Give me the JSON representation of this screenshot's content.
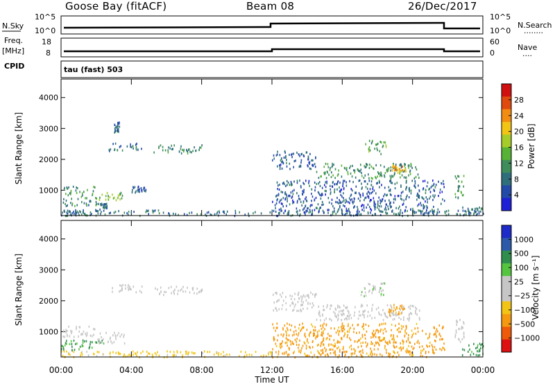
{
  "header": {
    "station": "Goose Bay (fitACF)",
    "beam": "Beam 08",
    "date": "26/Dec/2017"
  },
  "colors": {
    "axis": "#000000",
    "power_scale": [
      "#1f1fd6",
      "#244aa8",
      "#2f6f7c",
      "#3f8d5a",
      "#57b236",
      "#a6cc2a",
      "#f2c416",
      "#f28c12",
      "#e04a0e",
      "#d01010"
    ],
    "velocity_scale": [
      "#dd1111",
      "#ee5a0a",
      "#f59a10",
      "#f2c415",
      "#c6c6c6",
      "#c6c6c6",
      "#55c540",
      "#2f8e4d",
      "#2c5aa8",
      "#1d2bc8"
    ]
  },
  "info_panels": {
    "row1": {
      "left_label": "N.Sky",
      "left_ticks": [
        "10^5",
        "10^0"
      ],
      "right_ticks": [
        "10^5",
        "10^0"
      ],
      "right_label": "N.Search",
      "right_dots": "........"
    },
    "row2": {
      "left_label_1": "Freq.",
      "left_label_2": "[MHz]",
      "left_ticks": [
        "18",
        "8"
      ],
      "right_ticks": [
        "60",
        "0"
      ],
      "right_label": "Nave",
      "right_dots": "...."
    },
    "row3": {
      "left_label": "CPID",
      "text": "tau (fast) 503"
    }
  },
  "chart_data": [
    {
      "type": "heatmap",
      "title": "",
      "quantity": "Power",
      "ylabel": "Slant Range [km]",
      "xlabel": "",
      "x_ticks": [
        "00:00",
        "04:00",
        "08:00",
        "12:00",
        "16:00",
        "20:00",
        "00:00"
      ],
      "y_ticks": [
        "1000",
        "2000",
        "3000",
        "4000"
      ],
      "ylim": [
        180,
        4600
      ],
      "colorbar_label": "Power [dB]",
      "colorbar_ticks": [
        "4",
        "8",
        "12",
        "16",
        "20",
        "24",
        "28"
      ],
      "clim": [
        0,
        32
      ],
      "regions": [
        {
          "t0": 0.0,
          "t1": 2.4,
          "r0": 200,
          "r1": 420,
          "val": 7
        },
        {
          "t0": 0.1,
          "t1": 2.2,
          "r0": 520,
          "r1": 820,
          "val": 10
        },
        {
          "t0": 0.1,
          "t1": 1.9,
          "r0": 850,
          "r1": 1150,
          "val": 11
        },
        {
          "t0": 2.0,
          "t1": 3.5,
          "r0": 700,
          "r1": 950,
          "val": 15
        },
        {
          "t0": 2.2,
          "t1": 2.6,
          "r0": 450,
          "r1": 600,
          "val": 8
        },
        {
          "t0": 2.7,
          "t1": 4.6,
          "r0": 2300,
          "r1": 2550,
          "val": 8
        },
        {
          "t0": 5.2,
          "t1": 8.0,
          "r0": 2220,
          "r1": 2500,
          "val": 11
        },
        {
          "t0": 3.0,
          "t1": 3.3,
          "r0": 2900,
          "r1": 3250,
          "val": 7
        },
        {
          "t0": 4.0,
          "t1": 4.8,
          "r0": 950,
          "r1": 1150,
          "val": 6
        },
        {
          "t0": 0.0,
          "t1": 24.0,
          "r0": 200,
          "r1": 380,
          "val": 8
        },
        {
          "t0": 12.0,
          "t1": 14.5,
          "r0": 1700,
          "r1": 2300,
          "val": 6
        },
        {
          "t0": 14.5,
          "t1": 20.4,
          "r0": 1400,
          "r1": 1900,
          "val": 11
        },
        {
          "t0": 17.3,
          "t1": 18.5,
          "r0": 2200,
          "r1": 2650,
          "val": 13
        },
        {
          "t0": 18.8,
          "t1": 19.6,
          "r0": 1550,
          "r1": 1850,
          "val": 22
        },
        {
          "t0": 12.0,
          "t1": 21.8,
          "r0": 300,
          "r1": 1350,
          "val": 6
        },
        {
          "t0": 22.4,
          "t1": 22.9,
          "r0": 700,
          "r1": 1500,
          "val": 12
        },
        {
          "t0": 22.8,
          "t1": 24.0,
          "r0": 250,
          "r1": 500,
          "val": 7
        }
      ]
    },
    {
      "type": "heatmap",
      "title": "",
      "quantity": "Velocity",
      "ylabel": "Slant Range [km]",
      "xlabel": "Time UT",
      "x_ticks": [
        "00:00",
        "04:00",
        "08:00",
        "12:00",
        "16:00",
        "20:00",
        "00:00"
      ],
      "y_ticks": [
        "1000",
        "2000",
        "3000",
        "4000"
      ],
      "ylim": [
        180,
        4600
      ],
      "colorbar_label": "Velocity [m s⁻¹]",
      "colorbar_ticks": [
        "1000",
        "500",
        "100",
        "25",
        "−25",
        "−100",
        "−500",
        "−1000"
      ],
      "regions": [
        {
          "t0": 0.0,
          "t1": 2.4,
          "r0": 420,
          "r1": 750,
          "val": 120
        },
        {
          "t0": 0.0,
          "t1": 2.0,
          "r0": 850,
          "r1": 1200,
          "val": 0
        },
        {
          "t0": 2.0,
          "t1": 3.6,
          "r0": 650,
          "r1": 1000,
          "val": 10
        },
        {
          "t0": 2.8,
          "t1": 4.6,
          "r0": 2300,
          "r1": 2550,
          "val": 5
        },
        {
          "t0": 5.2,
          "t1": 8.0,
          "r0": 2220,
          "r1": 2500,
          "val": 0
        },
        {
          "t0": 0.0,
          "t1": 12.0,
          "r0": 200,
          "r1": 400,
          "val": -40
        },
        {
          "t0": 12.0,
          "t1": 21.8,
          "r0": 200,
          "r1": 1300,
          "val": -150
        },
        {
          "t0": 14.5,
          "t1": 20.4,
          "r0": 1400,
          "r1": 1900,
          "val": 0
        },
        {
          "t0": 17.0,
          "t1": 18.5,
          "r0": 2150,
          "r1": 2600,
          "val": 20
        },
        {
          "t0": 18.6,
          "t1": 19.6,
          "r0": 1550,
          "r1": 1900,
          "val": -150
        },
        {
          "t0": 12.0,
          "t1": 14.5,
          "r0": 1700,
          "r1": 2300,
          "val": 0
        },
        {
          "t0": 22.4,
          "t1": 22.9,
          "r0": 700,
          "r1": 1500,
          "val": 0
        },
        {
          "t0": 22.8,
          "t1": 24.0,
          "r0": 250,
          "r1": 700,
          "val": 150
        }
      ]
    }
  ]
}
